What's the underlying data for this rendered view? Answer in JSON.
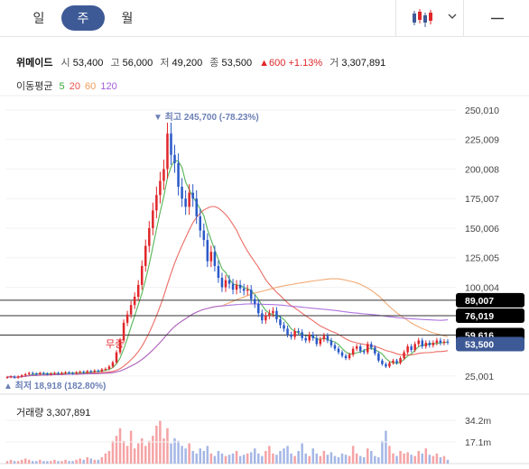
{
  "period_tabs": [
    {
      "label": "일",
      "active": false
    },
    {
      "label": "주",
      "active": true
    },
    {
      "label": "월",
      "active": false
    }
  ],
  "chart_type_icon": "candlestick-icon",
  "menu_icon": "hamburger-icon",
  "stock": {
    "name": "위메이드",
    "open_label": "시",
    "open": "53,400",
    "high_label": "고",
    "high": "56,000",
    "low_label": "저",
    "low": "49,200",
    "close_label": "종",
    "close": "53,500",
    "change": "▲600",
    "change_pct": "+1.13%",
    "volume_label": "거",
    "volume": "3,307,891"
  },
  "moving_average": {
    "label": "이동평균",
    "periods": [
      {
        "value": "5",
        "color": "#38a838"
      },
      {
        "value": "20",
        "color": "#e8524a"
      },
      {
        "value": "60",
        "color": "#f09a5a"
      },
      {
        "value": "120",
        "color": "#a05ad8"
      }
    ]
  },
  "annotations": {
    "high": "▼ 최고 245,700 (-78.23%)",
    "low": "▲ 최저 18,918 (182.80%)",
    "event": "무증"
  },
  "price_tags": [
    {
      "value": "89,007",
      "bg": "#000000"
    },
    {
      "value": "76,019",
      "bg": "#000000"
    },
    {
      "value": "59,616",
      "bg": "#000000"
    },
    {
      "value": "53,500",
      "bg": "#3e5a96"
    }
  ],
  "volume_panel": {
    "label": "거래량 3,307,891",
    "ticks": [
      "34.2m",
      "17.1m"
    ]
  },
  "colors": {
    "up": "#e0262a",
    "down": "#2a59c8",
    "accent": "#3e5a96"
  },
  "chart_data": {
    "type": "candlestick",
    "y_ticks": [
      250010,
      225009,
      200008,
      175007,
      150006,
      125005,
      100004,
      25001
    ],
    "ylim": [
      18000,
      256000
    ],
    "reference_lines": [
      89007,
      76019,
      59616
    ],
    "close": [
      24000,
      24500,
      23500,
      24500,
      25500,
      26500,
      27500,
      27000,
      26500,
      27500,
      27000,
      26500,
      27000,
      27500,
      27000,
      27500,
      28000,
      27500,
      27000,
      28000,
      28500,
      28000,
      29000,
      28500,
      29500,
      29000,
      30500,
      31000,
      33000,
      36500,
      45000,
      55000,
      70000,
      77000,
      85000,
      92000,
      102000,
      118000,
      135000,
      150000,
      165000,
      178000,
      190000,
      200000,
      230000,
      212000,
      205000,
      185000,
      175000,
      168000,
      180000,
      175000,
      160000,
      148000,
      140000,
      122000,
      130000,
      118000,
      108000,
      100000,
      106000,
      103000,
      98000,
      102000,
      99000,
      97000,
      98000,
      90000,
      86000,
      78000,
      72000,
      76000,
      78000,
      80000,
      73000,
      68000,
      65000,
      60000,
      58000,
      63000,
      62000,
      57000,
      55000,
      60000,
      57000,
      52000,
      56000,
      59000,
      55000,
      51000,
      48000,
      45000,
      42000,
      40000,
      43000,
      48000,
      50000,
      46000,
      45000,
      52000,
      49000,
      44000,
      38000,
      35000,
      33000,
      36000,
      38000,
      36000,
      40000,
      45000,
      50000,
      47000,
      52000,
      55000,
      50000,
      53000,
      51000,
      53000,
      55000,
      53000,
      54000,
      53500
    ],
    "volume_millions": [
      2,
      3,
      2,
      2,
      3,
      4,
      3,
      2,
      2,
      3,
      2,
      2,
      2,
      3,
      2,
      2,
      3,
      2,
      2,
      3,
      4,
      3,
      5,
      4,
      3,
      3,
      5,
      8,
      10,
      18,
      22,
      28,
      18,
      14,
      26,
      12,
      16,
      20,
      14,
      18,
      22,
      30,
      34,
      20,
      28,
      16,
      20,
      18,
      14,
      12,
      16,
      10,
      8,
      12,
      10,
      14,
      8,
      6,
      10,
      8,
      6,
      7,
      8,
      10,
      6,
      7,
      8,
      9,
      12,
      8,
      6,
      10,
      14,
      8,
      7,
      10,
      12,
      14,
      8,
      6,
      10,
      16,
      8,
      6,
      12,
      8,
      6,
      10,
      7,
      9,
      6,
      5,
      8,
      7,
      6,
      14,
      8,
      6,
      5,
      12,
      10,
      6,
      5,
      18,
      26,
      14,
      8,
      6,
      10,
      8,
      9,
      7,
      6,
      10,
      8,
      12,
      7,
      6,
      8,
      5,
      6,
      3
    ],
    "volume_ylim": [
      0,
      40
    ]
  }
}
